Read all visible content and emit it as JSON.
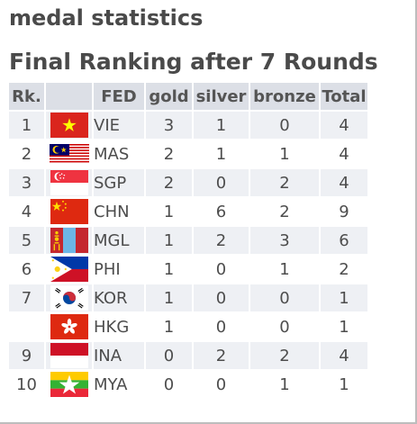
{
  "title": "medal statistics",
  "subtitle": "Final Ranking after 7 Rounds",
  "columns": {
    "rank": "Rk.",
    "flag": "",
    "fed": "FED",
    "gold": "gold",
    "silver": "silver",
    "bronze": "bronze",
    "total": "Total"
  },
  "rows": [
    {
      "rank": "1",
      "flag": "vie-flag-icon",
      "fed": "VIE",
      "gold": "3",
      "silver": "1",
      "bronze": "0",
      "total": "4"
    },
    {
      "rank": "2",
      "flag": "mas-flag-icon",
      "fed": "MAS",
      "gold": "2",
      "silver": "1",
      "bronze": "1",
      "total": "4"
    },
    {
      "rank": "3",
      "flag": "sgp-flag-icon",
      "fed": "SGP",
      "gold": "2",
      "silver": "0",
      "bronze": "2",
      "total": "4"
    },
    {
      "rank": "4",
      "flag": "chn-flag-icon",
      "fed": "CHN",
      "gold": "1",
      "silver": "6",
      "bronze": "2",
      "total": "9"
    },
    {
      "rank": "5",
      "flag": "mgl-flag-icon",
      "fed": "MGL",
      "gold": "1",
      "silver": "2",
      "bronze": "3",
      "total": "6"
    },
    {
      "rank": "6",
      "flag": "phi-flag-icon",
      "fed": "PHI",
      "gold": "1",
      "silver": "0",
      "bronze": "1",
      "total": "2"
    },
    {
      "rank": "7",
      "flag": "kor-flag-icon",
      "fed": "KOR",
      "gold": "1",
      "silver": "0",
      "bronze": "0",
      "total": "1"
    },
    {
      "rank": "",
      "flag": "hkg-flag-icon",
      "fed": "HKG",
      "gold": "1",
      "silver": "0",
      "bronze": "0",
      "total": "1"
    },
    {
      "rank": "9",
      "flag": "ina-flag-icon",
      "fed": "INA",
      "gold": "0",
      "silver": "2",
      "bronze": "2",
      "total": "4"
    },
    {
      "rank": "10",
      "flag": "mya-flag-icon",
      "fed": "MYA",
      "gold": "0",
      "silver": "0",
      "bronze": "1",
      "total": "1"
    }
  ],
  "colors": {
    "header_bg": "#dcdfe6",
    "odd_row_bg": "#eef0f4",
    "even_row_bg": "#ffffff",
    "title_text": "#4a4a4a"
  }
}
